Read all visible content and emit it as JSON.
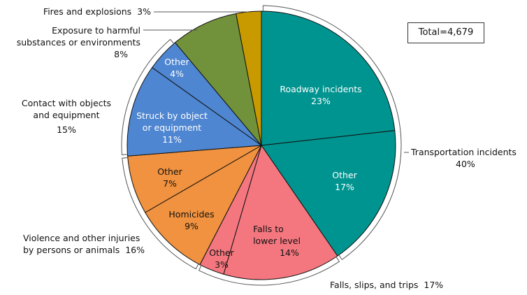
{
  "chart_data": {
    "type": "pie",
    "total_label": "Total=4,679",
    "slices": [
      {
        "label": "Roadway incidents",
        "value": 23,
        "pct": "23%",
        "color": "#009490",
        "group": "transportation"
      },
      {
        "label": "Other",
        "value": 17,
        "pct": "17%",
        "color": "#009490",
        "group": "transportation"
      },
      {
        "label": "Falls to lower level",
        "value": 14,
        "pct": "14%",
        "color": "#f4777f",
        "group": "falls"
      },
      {
        "label": "Other",
        "value": 3,
        "pct": "3%",
        "color": "#f4777f",
        "group": "falls"
      },
      {
        "label": "Homicides",
        "value": 9,
        "pct": "9%",
        "color": "#f0923f",
        "group": "violence"
      },
      {
        "label": "Other",
        "value": 7,
        "pct": "7%",
        "color": "#f0923f",
        "group": "violence"
      },
      {
        "label": "Struck by object or equipment",
        "value": 11,
        "pct": "11%",
        "color": "#4f86d1",
        "group": "contact"
      },
      {
        "label": "Other",
        "value": 4,
        "pct": "4%",
        "color": "#4f86d1",
        "group": "contact"
      },
      {
        "label": "Exposure to harmful substances or environments",
        "value": 8,
        "pct": "8%",
        "color": "#71923a",
        "group": "exposure"
      },
      {
        "label": "Fires and explosions",
        "value": 3,
        "pct": "3%",
        "color": "#c99a00",
        "group": "fires"
      }
    ],
    "groups": {
      "transportation": {
        "label": "Transportation incidents",
        "pct": "40%"
      },
      "falls": {
        "label": "Falls, slips, and trips",
        "pct": "17%"
      },
      "violence": {
        "label": "Violence and other injuries by persons or animals",
        "line1": "Violence and other injuries",
        "line2": "by persons or animals",
        "pct": "16%"
      },
      "contact": {
        "label": "Contact with objects and equipment",
        "line1": "Contact with objects",
        "line2": "and equipment",
        "pct": "15%"
      },
      "exposure": {
        "line1": "Exposure to harmful",
        "line2": "substances or environments",
        "pct": "8%"
      },
      "fires": {
        "label": "Fires and explosions",
        "pct": "3%"
      }
    },
    "inner_labels": {
      "roadway": [
        "Roadway incidents",
        "23%"
      ],
      "trans_other": [
        "Other",
        "17%"
      ],
      "falls_lower": [
        "Falls to",
        "lower level",
        "14%"
      ],
      "falls_other": [
        "Other",
        "3%"
      ],
      "homicides": [
        "Homicides",
        "9%"
      ],
      "viol_other": [
        "Other",
        "7%"
      ],
      "struck": [
        "Struck by object",
        "or equipment",
        "11%"
      ],
      "contact_other": [
        "Other",
        "4%"
      ]
    }
  }
}
